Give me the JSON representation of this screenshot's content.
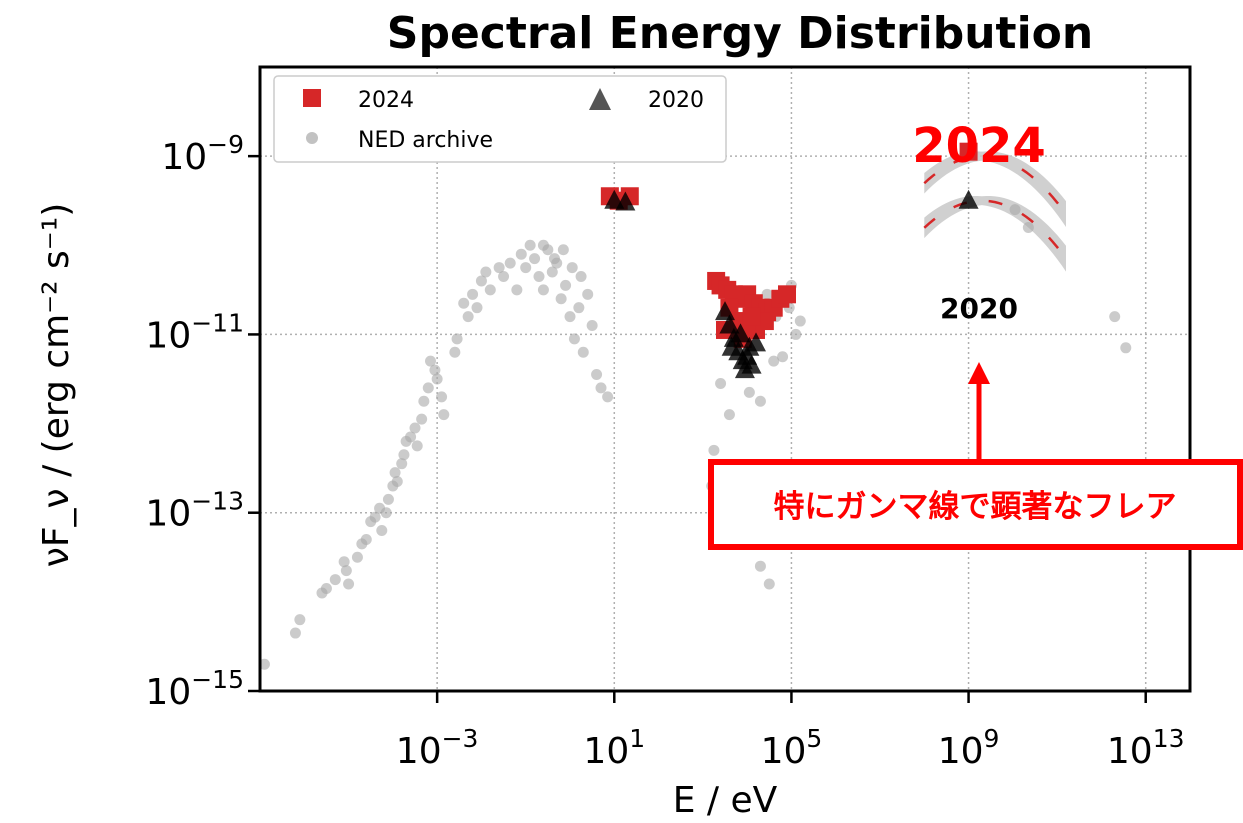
{
  "chart_data": {
    "type": "scatter",
    "title": "Spectral Energy Distribution",
    "xlabel": "E / eV",
    "ylabel": "νF_ν / (erg cm⁻² s⁻¹)",
    "xscale": "log",
    "yscale": "log",
    "xlim": [
      1e-07,
      100000000000000.0
    ],
    "ylim": [
      1e-15,
      1e-08
    ],
    "x_ticks": [
      {
        "value": 0.001,
        "mantissa": "10",
        "exp": "−3"
      },
      {
        "value": 10,
        "mantissa": "10",
        "exp": "1"
      },
      {
        "value": 100000,
        "mantissa": "10",
        "exp": "5"
      },
      {
        "value": 1000000000,
        "mantissa": "10",
        "exp": "9"
      },
      {
        "value": 10000000000000,
        "mantissa": "10",
        "exp": "13"
      }
    ],
    "y_ticks": [
      {
        "value": 1e-09,
        "mantissa": "10",
        "exp": "−9"
      },
      {
        "value": 1e-11,
        "mantissa": "10",
        "exp": "−11"
      },
      {
        "value": 1e-13,
        "mantissa": "10",
        "exp": "−13"
      },
      {
        "value": 1e-15,
        "mantissa": "10",
        "exp": "−15"
      }
    ],
    "grid": true,
    "legend_position": "top-left",
    "legend": [
      "2024",
      "NED archive",
      "2020"
    ],
    "series": [
      {
        "name": "NED archive",
        "marker": "circle",
        "color": "#a8a8a8",
        "points": [
          [
            -6.9,
            -14.7
          ],
          [
            -6.2,
            -14.35
          ],
          [
            -6.1,
            -14.2
          ],
          [
            -5.6,
            -13.9
          ],
          [
            -5.5,
            -13.85
          ],
          [
            -5.3,
            -13.75
          ],
          [
            -5.1,
            -13.55
          ],
          [
            -5.05,
            -13.65
          ],
          [
            -5.0,
            -13.8
          ],
          [
            -4.8,
            -13.5
          ],
          [
            -4.7,
            -13.35
          ],
          [
            -4.6,
            -13.3
          ],
          [
            -4.5,
            -13.1
          ],
          [
            -4.4,
            -13.05
          ],
          [
            -4.3,
            -12.95
          ],
          [
            -4.25,
            -13.2
          ],
          [
            -4.15,
            -13.0
          ],
          [
            -4.1,
            -12.85
          ],
          [
            -4.0,
            -12.7
          ],
          [
            -3.95,
            -12.55
          ],
          [
            -3.9,
            -12.65
          ],
          [
            -3.8,
            -12.45
          ],
          [
            -3.75,
            -12.35
          ],
          [
            -3.7,
            -12.2
          ],
          [
            -3.6,
            -12.15
          ],
          [
            -3.5,
            -12.05
          ],
          [
            -3.45,
            -12.25
          ],
          [
            -3.35,
            -11.95
          ],
          [
            -3.3,
            -11.75
          ],
          [
            -3.2,
            -11.6
          ],
          [
            -3.15,
            -11.3
          ],
          [
            -3.05,
            -11.4
          ],
          [
            -3.0,
            -11.5
          ],
          [
            -2.9,
            -11.7
          ],
          [
            -2.85,
            -11.9
          ],
          [
            -2.6,
            -11.2
          ],
          [
            -2.55,
            -11.05
          ],
          [
            -2.4,
            -10.65
          ],
          [
            -2.3,
            -10.8
          ],
          [
            -2.2,
            -10.55
          ],
          [
            -2.1,
            -10.7
          ],
          [
            -2.0,
            -10.4
          ],
          [
            -1.9,
            -10.3
          ],
          [
            -1.8,
            -10.5
          ],
          [
            -1.6,
            -10.25
          ],
          [
            -1.5,
            -10.35
          ],
          [
            -1.35,
            -10.2
          ],
          [
            -1.2,
            -10.5
          ],
          [
            -1.1,
            -10.1
          ],
          [
            -1.0,
            -10.25
          ],
          [
            -0.9,
            -10.0
          ],
          [
            -0.8,
            -10.15
          ],
          [
            -0.7,
            -10.35
          ],
          [
            -0.6,
            -10.5
          ],
          [
            -0.5,
            -10.05
          ],
          [
            -0.4,
            -10.3
          ],
          [
            -0.3,
            -10.2
          ],
          [
            -0.2,
            -10.6
          ],
          [
            -0.1,
            -10.45
          ],
          [
            0.0,
            -10.8
          ],
          [
            0.1,
            -11.05
          ],
          [
            0.2,
            -10.7
          ],
          [
            0.3,
            -11.2
          ],
          [
            0.4,
            -10.55
          ],
          [
            0.5,
            -10.9
          ],
          [
            0.6,
            -11.45
          ],
          [
            0.7,
            -11.6
          ],
          [
            0.85,
            -11.7
          ],
          [
            -0.35,
            -10.15
          ],
          [
            -0.15,
            -10.05
          ],
          [
            0.05,
            -10.25
          ],
          [
            0.25,
            -10.35
          ],
          [
            -0.6,
            -10.0
          ],
          [
            3.2,
            -12.7
          ],
          [
            3.25,
            -12.3
          ],
          [
            3.5,
            -12.5
          ],
          [
            3.8,
            -12.8
          ],
          [
            3.9,
            -13.1
          ],
          [
            4.1,
            -13.3
          ],
          [
            4.0,
            -12.95
          ],
          [
            4.3,
            -13.6
          ],
          [
            4.5,
            -13.8
          ],
          [
            3.4,
            -11.55
          ],
          [
            3.6,
            -11.9
          ],
          [
            3.9,
            -11.35
          ],
          [
            4.05,
            -11.65
          ],
          [
            4.3,
            -11.75
          ],
          [
            4.6,
            -11.3
          ],
          [
            4.8,
            -11.25
          ],
          [
            5.1,
            -11.0
          ],
          [
            4.45,
            -10.55
          ],
          [
            4.65,
            -10.8
          ],
          [
            4.95,
            -10.7
          ],
          [
            5.0,
            -10.45
          ],
          [
            5.2,
            -10.85
          ],
          [
            10.05,
            -9.6
          ],
          [
            10.35,
            -9.8
          ],
          [
            12.3,
            -10.8
          ],
          [
            12.55,
            -11.15
          ]
        ]
      },
      {
        "name": "2024",
        "marker": "square",
        "color": "#d62728",
        "points": [
          [
            0.9,
            -9.45
          ],
          [
            1.1,
            -9.5
          ],
          [
            1.35,
            -9.45
          ],
          [
            3.3,
            -10.4
          ],
          [
            3.4,
            -10.45
          ],
          [
            3.55,
            -10.5
          ],
          [
            3.7,
            -10.55
          ],
          [
            3.85,
            -10.6
          ],
          [
            4.0,
            -10.55
          ],
          [
            4.15,
            -10.65
          ],
          [
            4.3,
            -10.7
          ],
          [
            4.45,
            -10.75
          ],
          [
            4.6,
            -10.7
          ],
          [
            4.75,
            -10.6
          ],
          [
            4.9,
            -10.55
          ],
          [
            3.6,
            -10.7
          ],
          [
            3.8,
            -10.85
          ],
          [
            4.0,
            -10.9
          ],
          [
            4.2,
            -10.95
          ],
          [
            4.4,
            -10.85
          ],
          [
            3.5,
            -10.95
          ],
          [
            3.9,
            -11.05
          ],
          [
            4.1,
            -10.8
          ],
          [
            9.0,
            -8.95
          ]
        ]
      },
      {
        "name": "2020",
        "marker": "triangle",
        "color": "#000000",
        "points": [
          [
            1.0,
            -9.5
          ],
          [
            1.25,
            -9.52
          ],
          [
            3.5,
            -10.75
          ],
          [
            3.6,
            -10.9
          ],
          [
            3.7,
            -11.05
          ],
          [
            3.8,
            -11.2
          ],
          [
            3.9,
            -11.3
          ],
          [
            4.0,
            -11.25
          ],
          [
            4.1,
            -11.35
          ],
          [
            4.2,
            -11.1
          ],
          [
            3.85,
            -11.0
          ],
          [
            4.05,
            -11.15
          ],
          [
            3.65,
            -11.15
          ],
          [
            3.95,
            -11.4
          ],
          [
            9.0,
            -9.5
          ]
        ]
      }
    ],
    "fit_bands": [
      {
        "name": "2024",
        "log_e_range": [
          8.0,
          11.2
        ],
        "peak_log_e": 9.3,
        "peak_log_y": -9.0
      },
      {
        "name": "2020",
        "log_e_range": [
          8.0,
          11.2
        ],
        "peak_log_e": 9.3,
        "peak_log_y": -9.5
      }
    ],
    "annotations": {
      "label_2024": "2024",
      "label_2020": "2020",
      "callout": "特にガンマ線で顕著なフレア"
    },
    "colors": {
      "accent_red": "#ff0000",
      "series_2024": "#d62728",
      "ned": "#a8a8a8"
    }
  }
}
